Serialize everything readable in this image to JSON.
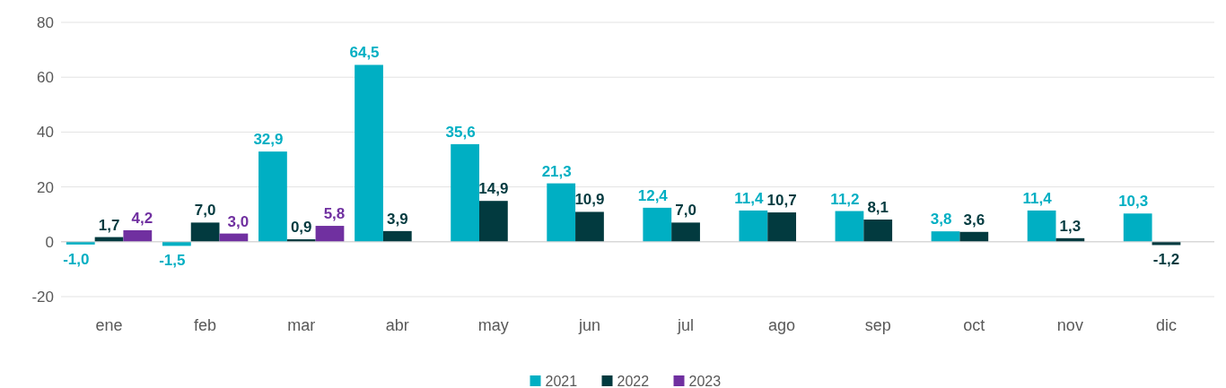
{
  "chart_data": {
    "type": "bar",
    "categories": [
      "ene",
      "feb",
      "mar",
      "abr",
      "may",
      "jun",
      "jul",
      "ago",
      "sep",
      "oct",
      "nov",
      "dic"
    ],
    "series": [
      {
        "name": "2021",
        "color": "#00afc3",
        "values": [
          -1.0,
          -1.5,
          32.9,
          64.5,
          35.6,
          21.3,
          12.4,
          11.4,
          11.2,
          3.8,
          11.4,
          10.3
        ],
        "value_labels": [
          "-1,0",
          "-1,5",
          "32,9",
          "64,5",
          "35,6",
          "21,3",
          "12,4",
          "11,4",
          "11,2",
          "3,8",
          "11,4",
          "10,3"
        ]
      },
      {
        "name": "2022",
        "color": "#023a3f",
        "values": [
          1.7,
          7.0,
          0.9,
          3.9,
          14.9,
          10.9,
          7.0,
          10.7,
          8.1,
          3.6,
          1.3,
          -1.2
        ],
        "value_labels": [
          "1,7",
          "7,0",
          "0,9",
          "3,9",
          "14,9",
          "10,9",
          "7,0",
          "10,7",
          "8,1",
          "3,6",
          "1,3",
          "-1,2"
        ]
      },
      {
        "name": "2023",
        "color": "#7030a0",
        "values": [
          4.2,
          3.0,
          5.8,
          null,
          null,
          null,
          null,
          null,
          null,
          null,
          null,
          null
        ],
        "value_labels": [
          "4,2",
          "3,0",
          "5,8",
          null,
          null,
          null,
          null,
          null,
          null,
          null,
          null,
          null
        ]
      }
    ],
    "ylim": [
      -20,
      80
    ],
    "yticks": [
      -20,
      0,
      20,
      40,
      60,
      80
    ],
    "grid": "y",
    "legend": "bottom"
  }
}
